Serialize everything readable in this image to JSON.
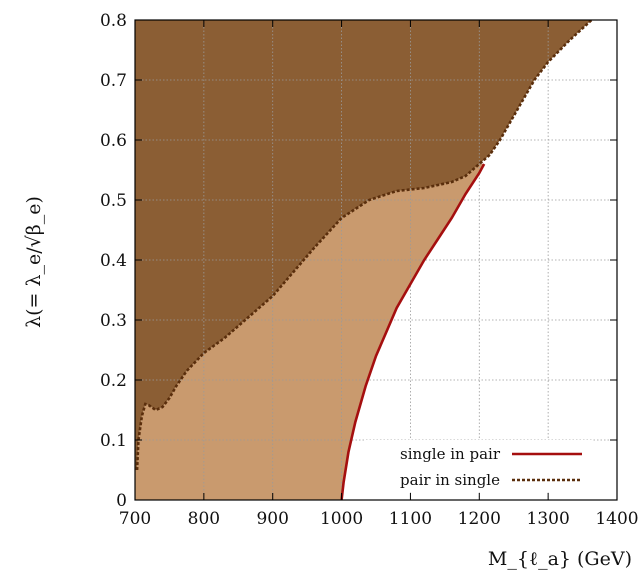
{
  "chart_data": {
    "type": "area",
    "xlabel": "M_{ℓ_a} (GeV)",
    "ylabel": "λ(= λ_e/√β_e)",
    "xlim": [
      700,
      1400
    ],
    "ylim": [
      0,
      0.8
    ],
    "xticks": [
      700,
      800,
      900,
      1000,
      1100,
      1200,
      1300,
      1400
    ],
    "yticks": [
      0,
      0.1,
      0.2,
      0.3,
      0.4,
      0.5,
      0.6,
      0.7,
      0.8
    ],
    "grid": true,
    "legend_position": "bottom-right",
    "colors": {
      "dark_region": "#8b5e34",
      "light_region": "#c99a6e",
      "single_in_pair_line": "#a50f0f",
      "pair_in_single_line": "#5a2e0c"
    },
    "series": [
      {
        "name": "single in pair",
        "style": "solid",
        "x": [
          1000,
          1003,
          1010,
          1020,
          1035,
          1050,
          1065,
          1080,
          1100,
          1120,
          1140,
          1160,
          1180,
          1200,
          1207
        ],
        "y": [
          0,
          0.03,
          0.08,
          0.13,
          0.19,
          0.24,
          0.28,
          0.32,
          0.36,
          0.4,
          0.435,
          0.47,
          0.51,
          0.545,
          0.56
        ]
      },
      {
        "name": "pair in single",
        "style": "dashed",
        "x": [
          703,
          705,
          710,
          715,
          720,
          730,
          740,
          750,
          760,
          775,
          800,
          830,
          860,
          900,
          930,
          960,
          1000,
          1040,
          1080,
          1120,
          1160,
          1180,
          1200,
          1215,
          1230,
          1250,
          1280,
          1300,
          1330,
          1363
        ],
        "y": [
          0.05,
          0.1,
          0.14,
          0.16,
          0.158,
          0.15,
          0.155,
          0.17,
          0.19,
          0.215,
          0.245,
          0.27,
          0.3,
          0.34,
          0.38,
          0.42,
          0.47,
          0.5,
          0.515,
          0.52,
          0.53,
          0.54,
          0.56,
          0.575,
          0.6,
          0.64,
          0.7,
          0.73,
          0.765,
          0.8
        ]
      }
    ]
  },
  "legend": {
    "items": [
      {
        "label": "single in pair"
      },
      {
        "label": "pair in single"
      }
    ]
  }
}
